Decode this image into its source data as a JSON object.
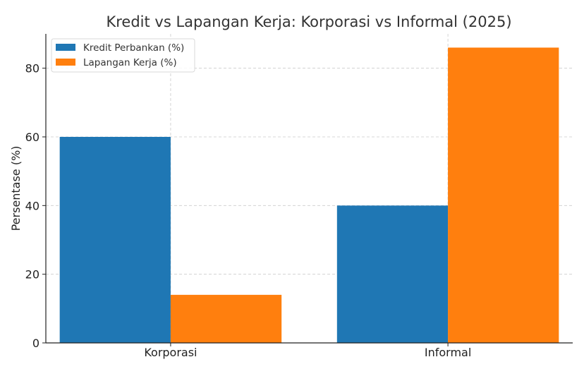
{
  "chart_data": {
    "type": "bar",
    "title": "Kredit vs Lapangan Kerja: Korporasi vs Informal (2025)",
    "xlabel": "",
    "ylabel": "Persentase (%)",
    "categories": [
      "Korporasi",
      "Informal"
    ],
    "series": [
      {
        "name": "Kredit Perbankan (%)",
        "color": "#1f77b4",
        "values": [
          60,
          40
        ]
      },
      {
        "name": "Lapangan Kerja (%)",
        "color": "#ff7f0e",
        "values": [
          14,
          86
        ]
      }
    ],
    "ylim": [
      0,
      90
    ],
    "yticks": [
      0,
      20,
      40,
      60,
      80
    ],
    "grid": true,
    "legend_position": "top-left"
  }
}
